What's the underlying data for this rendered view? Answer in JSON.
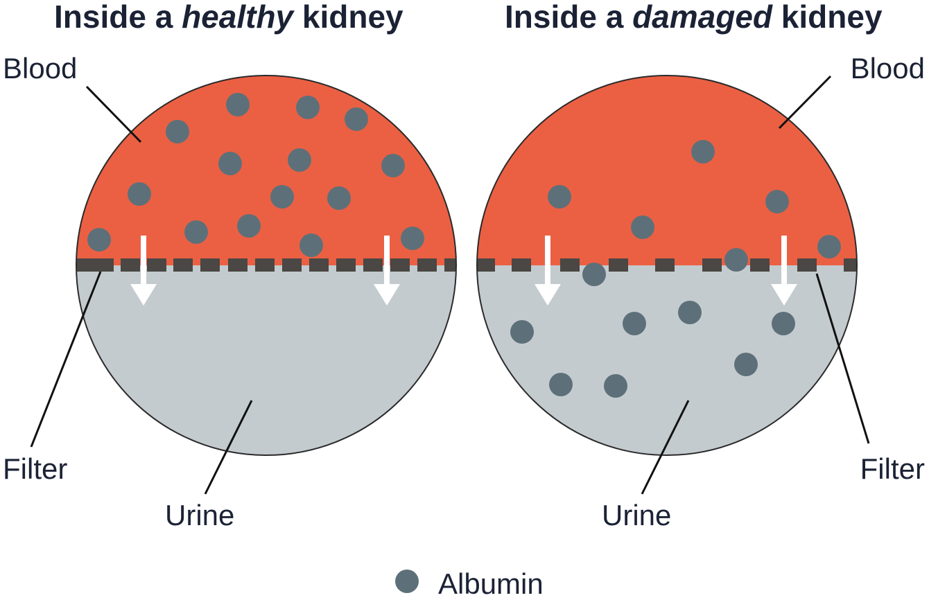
{
  "colors": {
    "blood": "#eb6043",
    "urine": "#c4cbcf",
    "albumin": "#5d7079",
    "filter": "#4a4744",
    "outline": "#2a2a2a",
    "text": "#1b2235",
    "arrow": "#ffffff"
  },
  "healthy": {
    "title_prefix": "Inside a ",
    "title_emph": "healthy",
    "title_suffix": " kidney",
    "blood_label": "Blood",
    "filter_label": "Filter",
    "urine_label": "Urine"
  },
  "damaged": {
    "title_prefix": "Inside a ",
    "title_emph": "damaged",
    "title_suffix": " kidney",
    "blood_label": "Blood",
    "filter_label": "Filter",
    "urine_label": "Urine"
  },
  "legend": {
    "label": "Albumin",
    "icon": "albumin-dot-icon"
  }
}
